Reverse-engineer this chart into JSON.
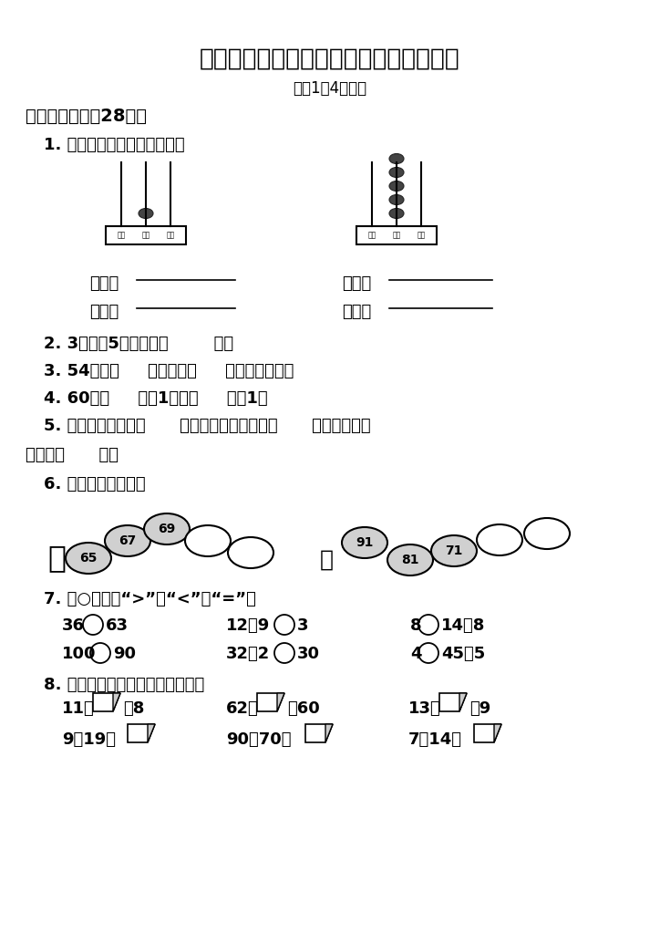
{
  "title": "人教版小学数学一年级下册期中检测试卷",
  "subtitle": "（第1～4单元）",
  "bg_color": "#ffffff",
  "section1": "一、填一填。（28分）",
  "q1": "1. 读、写下面计算器上是数。",
  "q1_write": "写作：",
  "q1_read": "读作：",
  "q2": "2. 3个十和5个一组成（        ）。",
  "q3": "3. 54是由（     ）个十和（     ）个一组成的。",
  "q4": "4. 60比（     ）少1，比（     ）多1。",
  "q5a": "5. 最大的一位数是（      ），最大的两位数是（      ），最小的三",
  "q5b": "位数是（      ）。",
  "q6": "6. 找规律，填一填。",
  "q7": "7. 在○里填上“>”、“<”或“=”。",
  "q8": "8. 纸片上代表什么数？请写出来。",
  "abacus1": {
    "hundreds": 0,
    "tens": 1,
    "ones": 0
  },
  "abacus2": {
    "hundreds": 0,
    "tens": 5,
    "ones": 0
  },
  "bubbles_left": [
    65,
    67,
    69,
    null,
    null
  ],
  "bubbles_right": [
    91,
    81,
    71,
    null,
    null
  ]
}
